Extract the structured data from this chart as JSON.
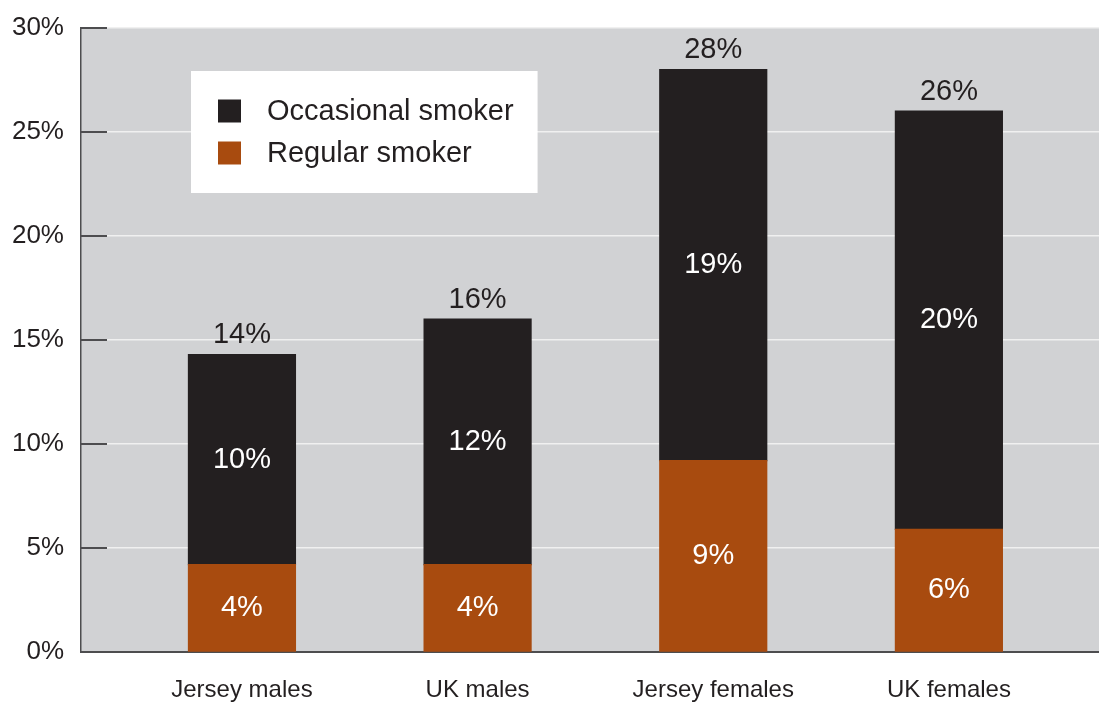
{
  "chart_data": {
    "type": "bar",
    "stacked": true,
    "categories": [
      "Jersey males",
      "UK males",
      "Jersey females",
      "UK females"
    ],
    "series": [
      {
        "name": "Regular smoker",
        "color": "#a84b0f",
        "values": [
          4.2,
          4.2,
          9.2,
          5.9
        ],
        "value_labels": [
          "4%",
          "4%",
          "9%",
          "6%"
        ]
      },
      {
        "name": "Occasional smoker",
        "color": "#231f20",
        "values": [
          10.1,
          11.8,
          18.8,
          20.1
        ],
        "value_labels": [
          "10%",
          "12%",
          "19%",
          "20%"
        ]
      }
    ],
    "totals": [
      "14%",
      "16%",
      "28%",
      "26%"
    ],
    "ylim": [
      0,
      30
    ],
    "yticks": [
      {
        "value": 0,
        "label": "0%"
      },
      {
        "value": 5,
        "label": "5%"
      },
      {
        "value": 10,
        "label": "10%"
      },
      {
        "value": 15,
        "label": "15%"
      },
      {
        "value": 20,
        "label": "20%"
      },
      {
        "value": 25,
        "label": "25%"
      },
      {
        "value": 30,
        "label": "30%"
      }
    ],
    "grid": "y",
    "legend": "top left"
  }
}
